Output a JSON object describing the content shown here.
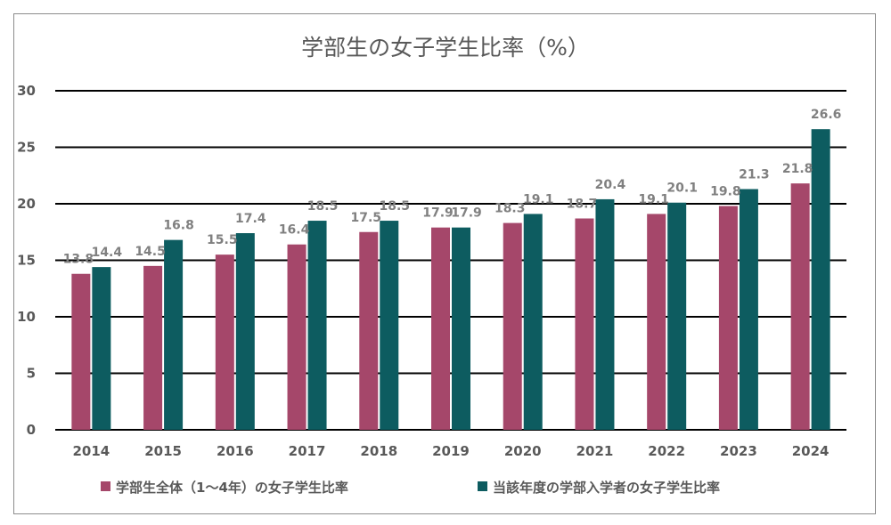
{
  "chart_data": {
    "type": "bar",
    "title": "学部生の女子学生比率（%）",
    "categories": [
      "2014",
      "2015",
      "2016",
      "2017",
      "2018",
      "2019",
      "2020",
      "2021",
      "2022",
      "2023",
      "2024"
    ],
    "series": [
      {
        "name": "学部生全体（1～4年）の女子学生比率",
        "color": "#a5476a",
        "values": [
          13.8,
          14.5,
          15.5,
          16.4,
          17.5,
          17.9,
          18.3,
          18.7,
          19.1,
          19.8,
          21.8
        ],
        "labels": [
          "13.8",
          "14.5",
          "15.5",
          "16.4",
          "17.5",
          "17.9",
          "18.3",
          "18.7",
          "19.1",
          "19.8",
          "21.8"
        ]
      },
      {
        "name": "当該年度の学部入学者の女子学生比率",
        "color": "#0d5c60",
        "values": [
          14.4,
          16.8,
          17.4,
          18.5,
          18.5,
          17.9,
          19.1,
          20.4,
          20.1,
          21.3,
          26.6
        ],
        "labels": [
          "14.4",
          "16.8",
          "17.4",
          "18.5",
          "18.5",
          "17.9",
          "19.1",
          "20.4",
          "20.1",
          "21.3",
          "26.6"
        ]
      }
    ],
    "ylim": [
      0,
      30
    ],
    "yticks": [
      "0",
      "5",
      "10",
      "15",
      "20",
      "25",
      "30"
    ],
    "xlabel": "",
    "ylabel": "",
    "grid": true,
    "legend_position": "bottom"
  }
}
